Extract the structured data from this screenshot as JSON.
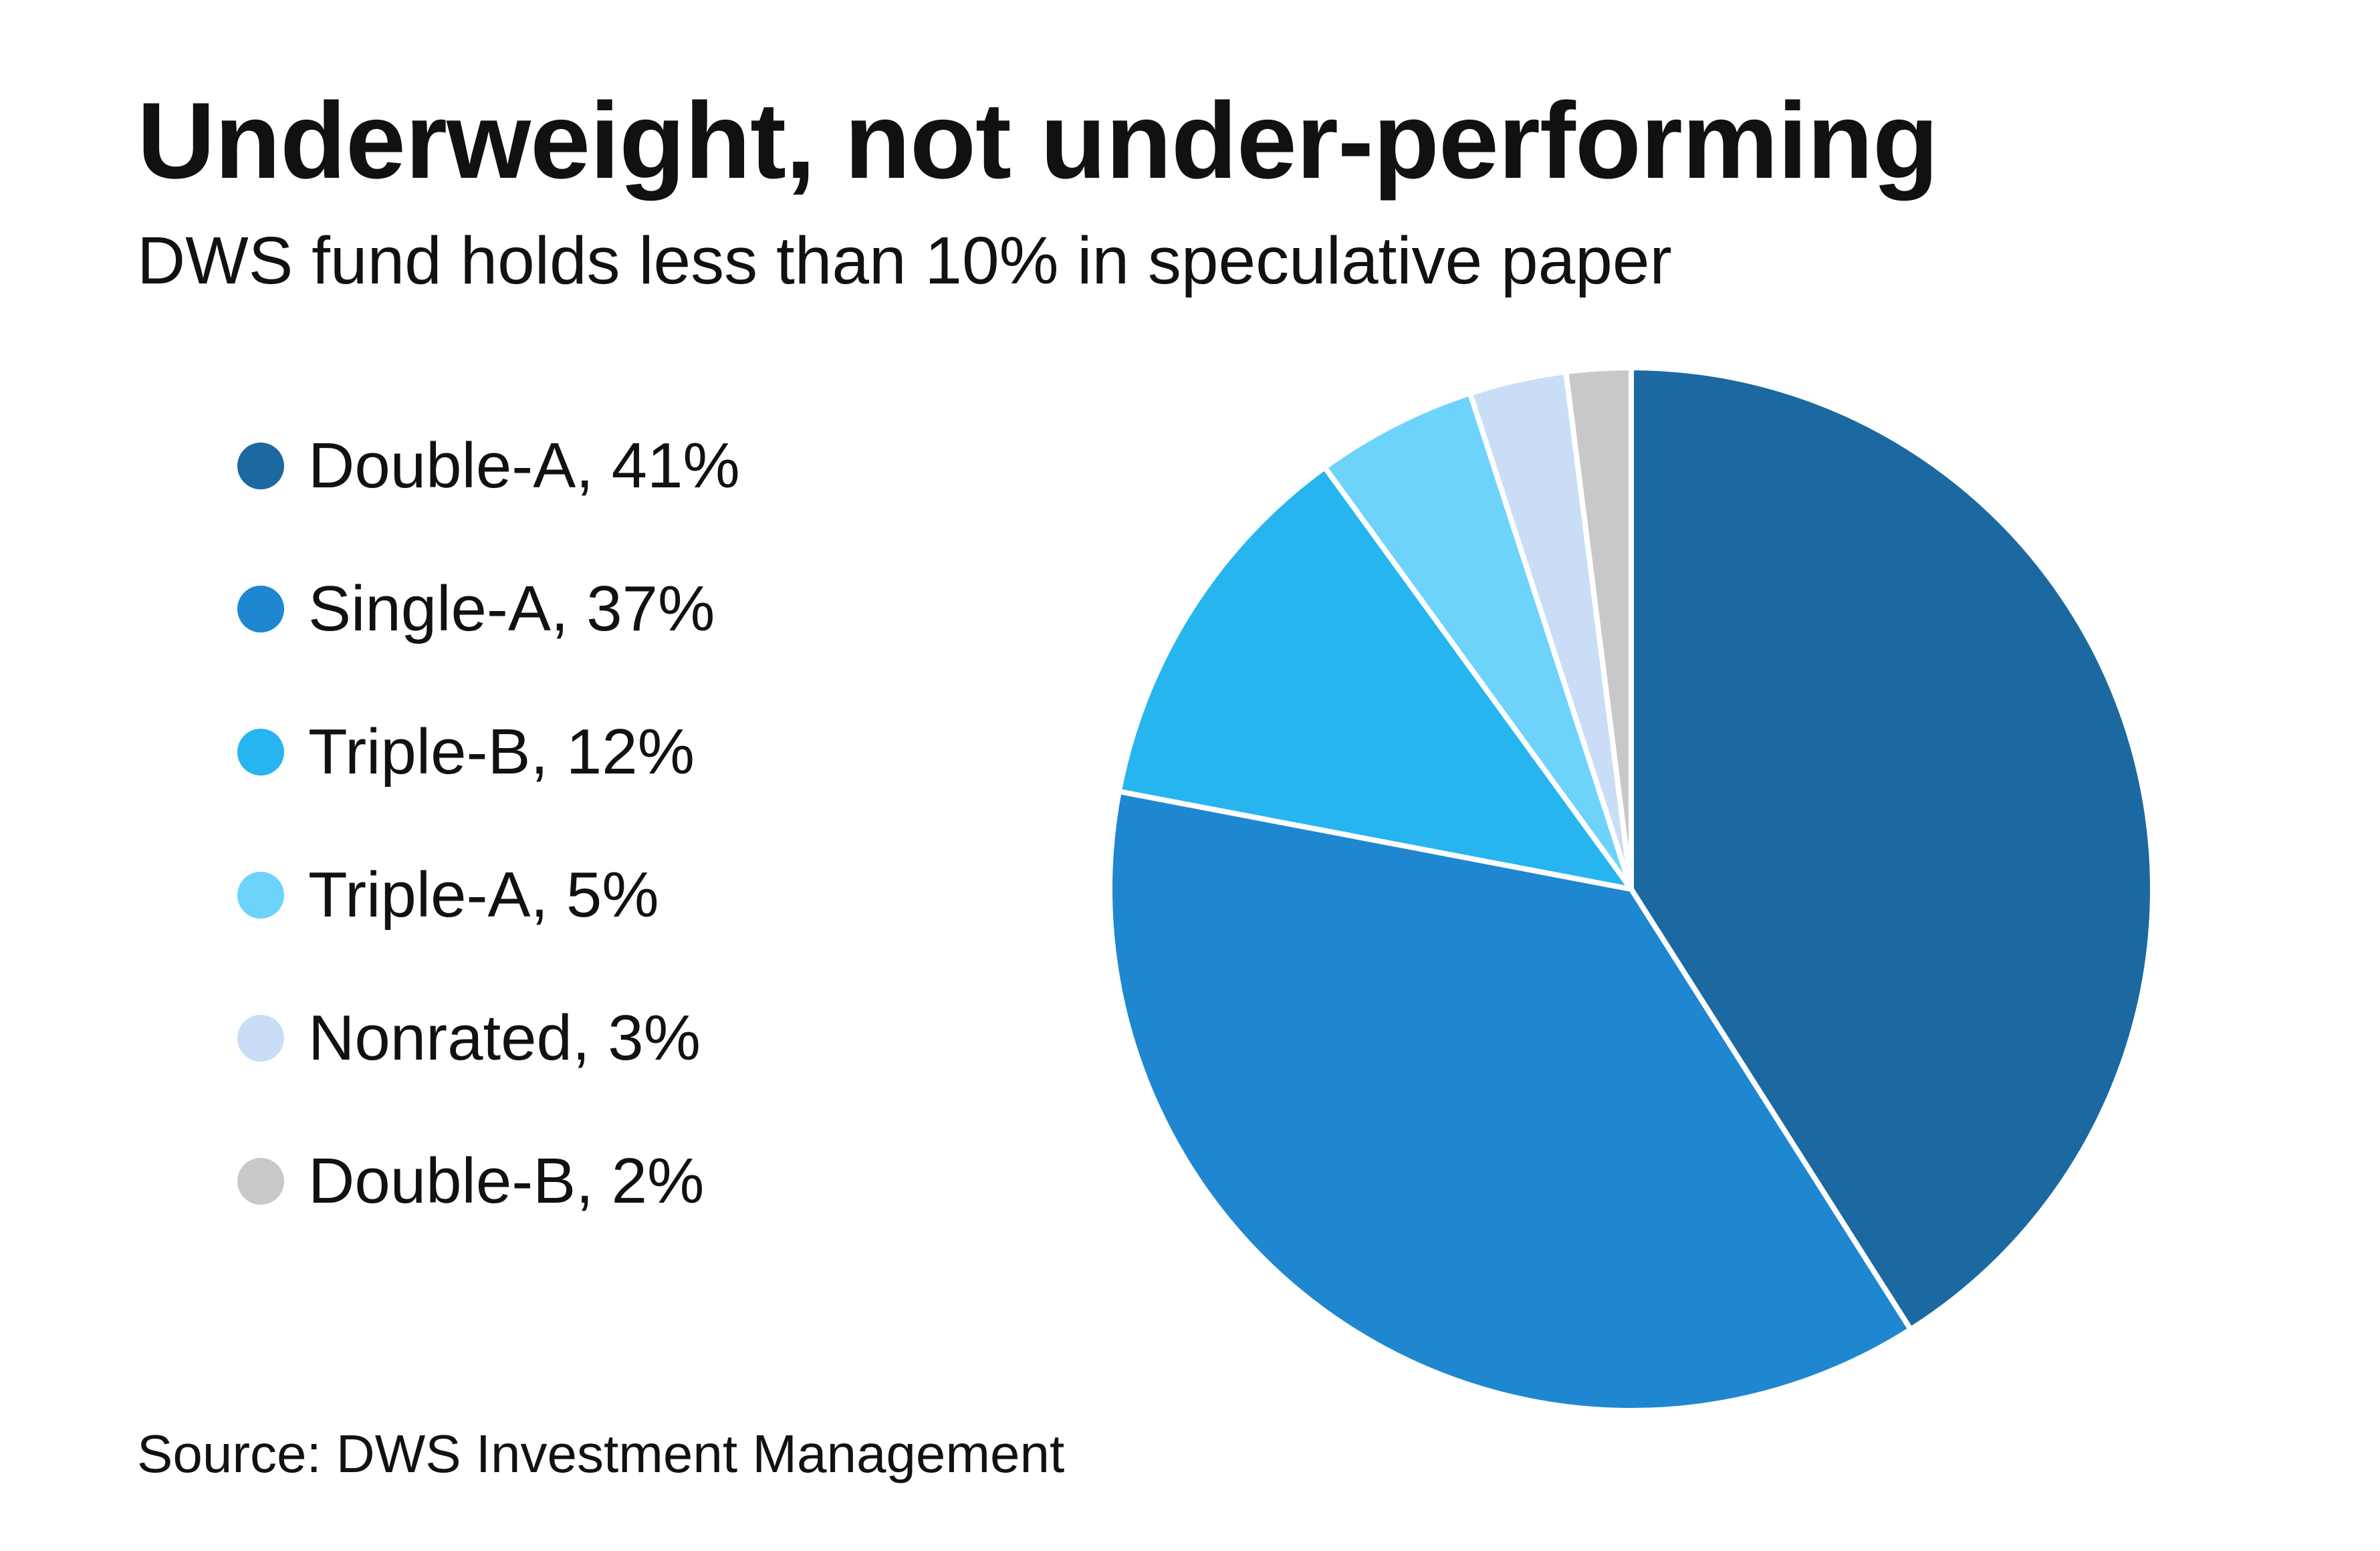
{
  "chart_data": {
    "type": "pie",
    "title": "Underweight, not under-performing",
    "subtitle": "DWS fund holds less than 10% in speculative paper",
    "source": "Source: DWS Investment Management",
    "legend_position": "left",
    "slices": [
      {
        "label": "Double-A, 41%",
        "category": "Double-A",
        "value": 41,
        "color": "#1b69a0"
      },
      {
        "label": "Single-A, 37%",
        "category": "Single-A",
        "value": 37,
        "color": "#1e87d0"
      },
      {
        "label": "Triple-B, 12%",
        "category": "Triple-B",
        "value": 12,
        "color": "#26b5ef"
      },
      {
        "label": "Triple-A, 5%",
        "category": "Triple-A",
        "value": 5,
        "color": "#6dd3fb"
      },
      {
        "label": "Nonrated, 3%",
        "category": "Nonrated",
        "value": 3,
        "color": "#c9def6"
      },
      {
        "label": "Double-B, 2%",
        "category": "Double-B",
        "value": 2,
        "color": "#c8c8c9"
      }
    ]
  }
}
